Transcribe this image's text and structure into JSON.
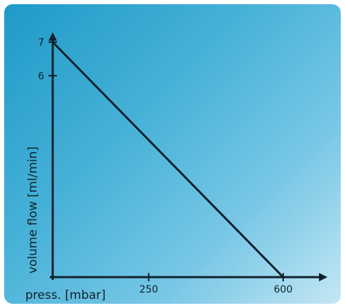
{
  "chart_data": {
    "type": "line",
    "xlabel": "press. [mbar]",
    "ylabel": "volume flow [ml/min]",
    "x_ticks": [
      250,
      600
    ],
    "y_ticks": [
      6,
      7
    ],
    "xlim": [
      0,
      700
    ],
    "ylim": [
      0,
      7.5
    ],
    "series": [
      {
        "x": [
          0,
          600
        ],
        "y": [
          7,
          0
        ]
      }
    ],
    "grid": false,
    "line_color": "#10212c"
  }
}
